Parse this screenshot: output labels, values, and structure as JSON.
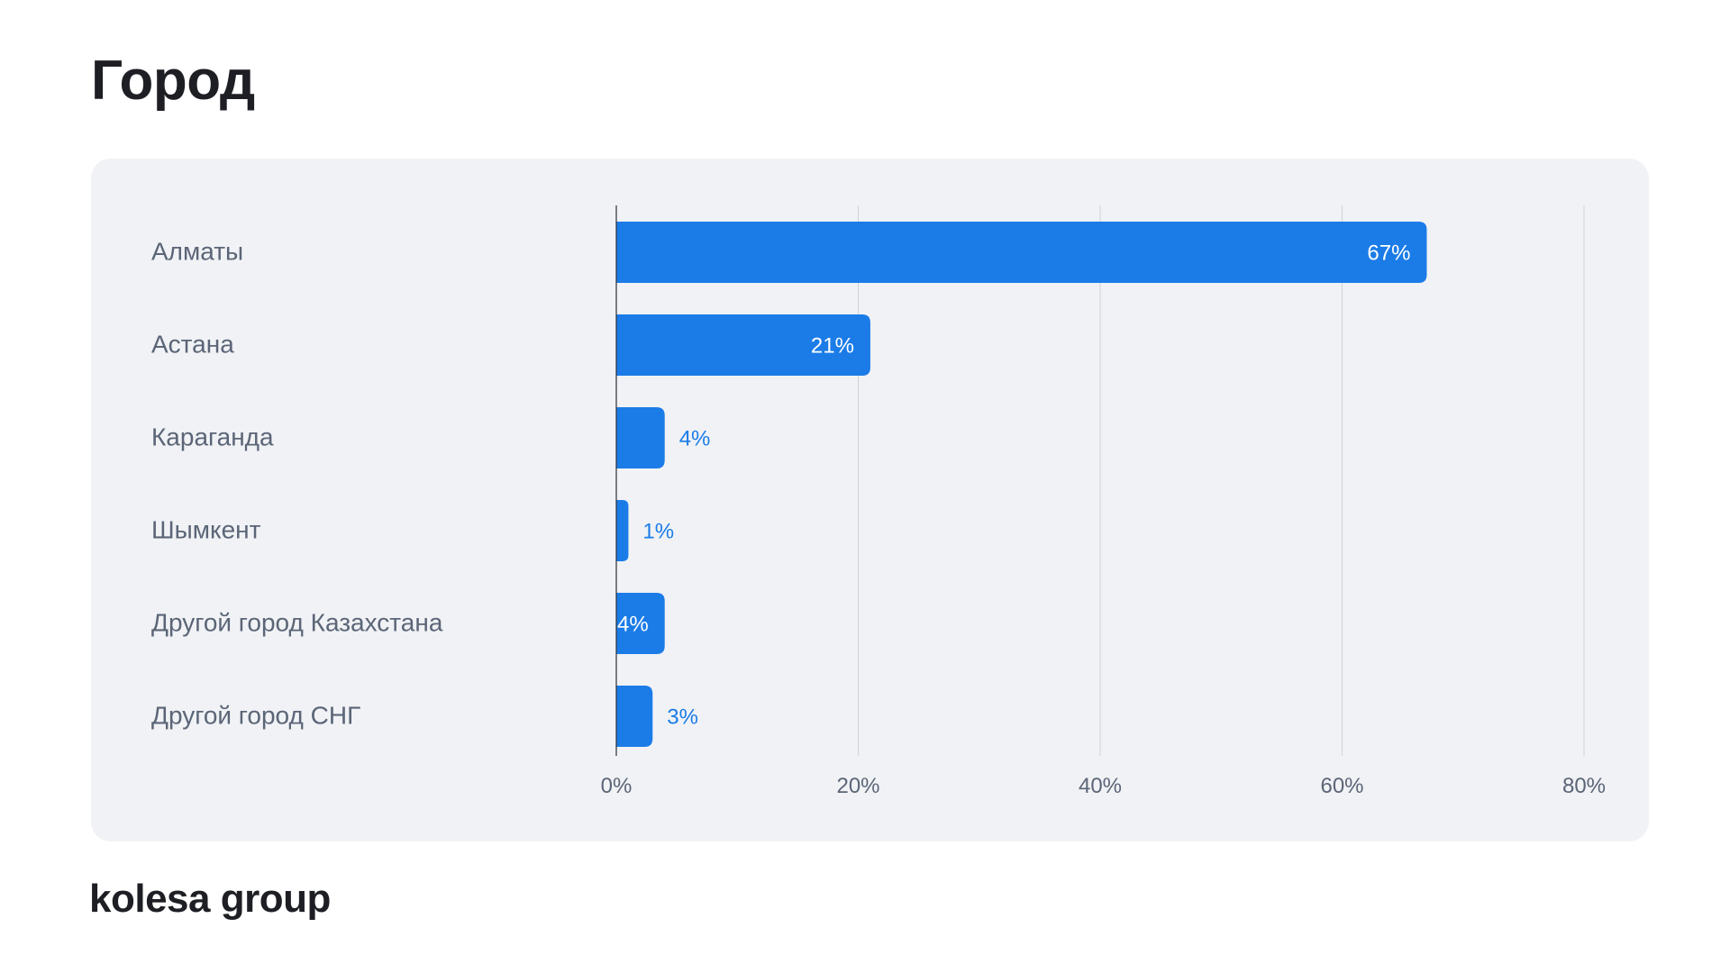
{
  "page": {
    "title": "Город"
  },
  "logo": {
    "text": "kolesa group"
  },
  "colors": {
    "bar": "#1b7ce8",
    "label_inside": "#ffffff",
    "label_outside": "#1b7ce8",
    "grid": "#cfd3da",
    "axis": "#2b2f36",
    "card_background": "#f0f2f5"
  },
  "chart_data": {
    "type": "bar",
    "orientation": "horizontal",
    "categories": [
      "Алматы",
      "Астана",
      "Караганда",
      "Шымкент",
      "Другой город Казахстана",
      "Другой город СНГ"
    ],
    "values": [
      67,
      21,
      4,
      1,
      4,
      3
    ],
    "value_labels": [
      "67%",
      "21%",
      "4%",
      "1%",
      "4%",
      "3%"
    ],
    "label_inside": [
      true,
      true,
      false,
      false,
      true,
      false
    ],
    "xlim": [
      0,
      80
    ],
    "xticks": [
      0,
      20,
      40,
      60,
      80
    ],
    "xtick_labels": [
      "0%",
      "20%",
      "40%",
      "60%",
      "80%"
    ],
    "grid": true,
    "legend": false,
    "title": "Город",
    "xlabel": "",
    "ylabel": ""
  }
}
